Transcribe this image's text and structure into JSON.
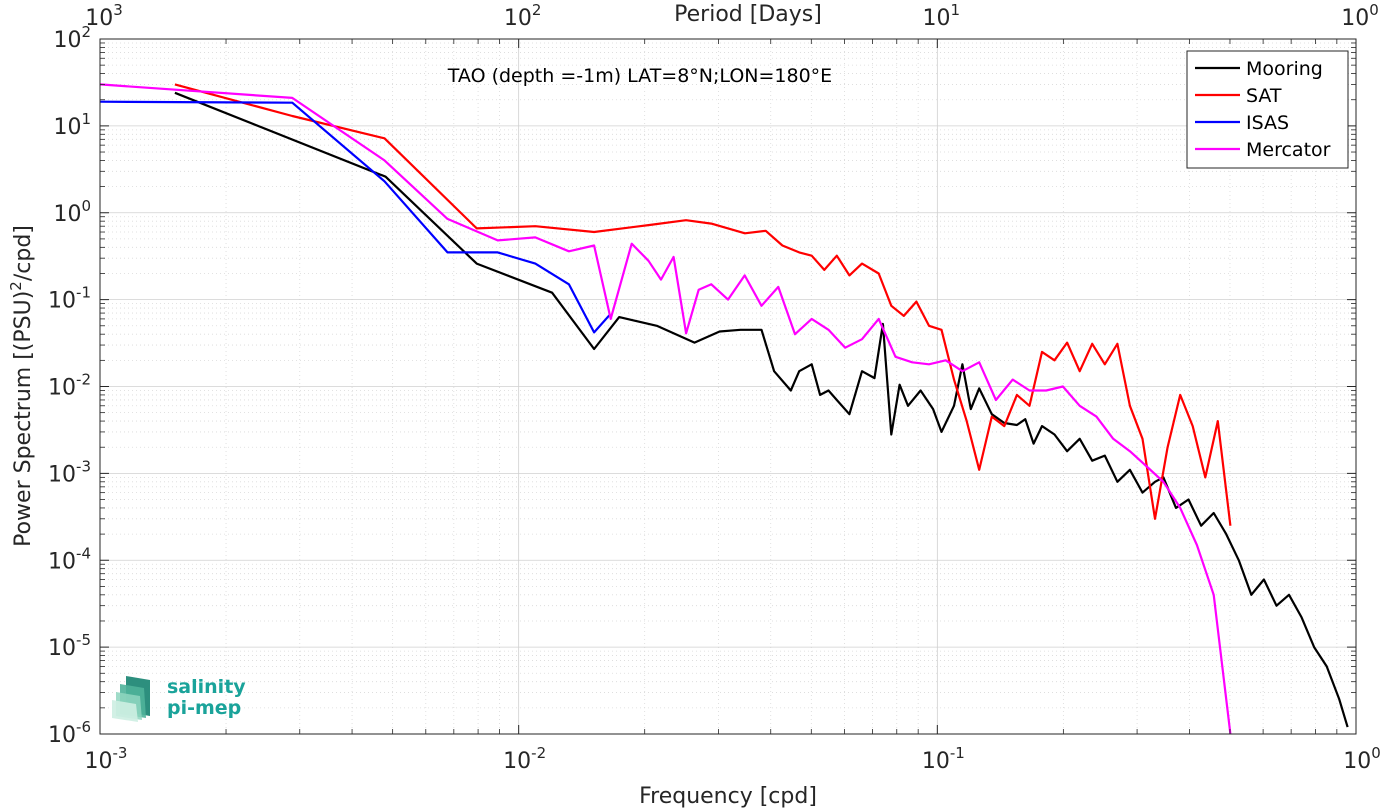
{
  "chart_data": {
    "type": "line",
    "title": "TAO (depth =-1m) LAT=8°N;LON=180°E",
    "xlabel": "Frequency [cpd]",
    "ylabel": "Power Spectrum [(PSU)²/cpd]",
    "top_xlabel": "Period [Days]",
    "xscale": "log",
    "yscale": "log",
    "xlim": [
      0.001,
      1
    ],
    "ylim": [
      1e-06,
      100
    ],
    "grid": true,
    "legend_position": "top-right",
    "x_ticks": [
      {
        "value": 0.001,
        "base": "10",
        "exp": "-3"
      },
      {
        "value": 0.01,
        "base": "10",
        "exp": "-2"
      },
      {
        "value": 0.1,
        "base": "10",
        "exp": "-1"
      },
      {
        "value": 1,
        "base": "10",
        "exp": "0"
      }
    ],
    "top_x_ticks": [
      {
        "value": 0.001,
        "base": "10",
        "exp": "3"
      },
      {
        "value": 0.01,
        "base": "10",
        "exp": "2"
      },
      {
        "value": 0.1,
        "base": "10",
        "exp": "1"
      },
      {
        "value": 1,
        "base": "10",
        "exp": "0"
      }
    ],
    "y_ticks": [
      {
        "value": 1e-06,
        "base": "10",
        "exp": "-6"
      },
      {
        "value": 1e-05,
        "base": "10",
        "exp": "-5"
      },
      {
        "value": 0.0001,
        "base": "10",
        "exp": "-4"
      },
      {
        "value": 0.001,
        "base": "10",
        "exp": "-3"
      },
      {
        "value": 0.01,
        "base": "10",
        "exp": "-2"
      },
      {
        "value": 0.1,
        "base": "10",
        "exp": "-1"
      },
      {
        "value": 1,
        "base": "10",
        "exp": "0"
      },
      {
        "value": 10,
        "base": "10",
        "exp": "1"
      },
      {
        "value": 100,
        "base": "10",
        "exp": "2"
      }
    ],
    "series": [
      {
        "name": "Mooring",
        "color": "#000000",
        "x": [
          0.00151,
          0.00481,
          0.00794,
          0.01202,
          0.01514,
          0.01738,
          0.02138,
          0.0263,
          0.0302,
          0.03388,
          0.03802,
          0.04074,
          0.04467,
          0.04677,
          0.05012,
          0.05248,
          0.05495,
          0.05754,
          0.06166,
          0.06607,
          0.07079,
          0.07413,
          0.07762,
          0.08128,
          0.08511,
          0.0912,
          0.09772,
          0.1023,
          0.1096,
          0.1148,
          0.1202,
          0.1259,
          0.1349,
          0.1445,
          0.1549,
          0.1622,
          0.1698,
          0.1778,
          0.1905,
          0.2042,
          0.2188,
          0.2344,
          0.2512,
          0.2692,
          0.2884,
          0.309,
          0.3311,
          0.3467,
          0.3715,
          0.3981,
          0.4266,
          0.4571,
          0.4898,
          0.5248,
          0.5623,
          0.6026,
          0.6457,
          0.6918,
          0.7413,
          0.7943,
          0.8511,
          0.912,
          0.955
        ],
        "y": [
          24,
          2.6,
          0.26,
          0.12,
          0.027,
          0.063,
          0.05,
          0.032,
          0.043,
          0.045,
          0.045,
          0.015,
          0.009,
          0.015,
          0.018,
          0.008,
          0.009,
          0.007,
          0.0048,
          0.015,
          0.0125,
          0.0525,
          0.0028,
          0.0105,
          0.006,
          0.009,
          0.0055,
          0.003,
          0.006,
          0.018,
          0.0055,
          0.0095,
          0.0048,
          0.0038,
          0.0036,
          0.0042,
          0.0022,
          0.0035,
          0.0028,
          0.0018,
          0.0025,
          0.0014,
          0.0016,
          0.0008,
          0.0011,
          0.0006,
          0.0008,
          0.0009,
          0.0004,
          0.0005,
          0.00025,
          0.00035,
          0.0002,
          0.0001,
          4e-05,
          6e-05,
          3e-05,
          4e-05,
          2.2e-05,
          1e-05,
          6e-06,
          2.5e-06,
          1.2e-06
        ]
      },
      {
        "name": "SAT",
        "color": "#ff0000",
        "x": [
          0.00151,
          0.00288,
          0.00478,
          0.00794,
          0.01096,
          0.01514,
          0.02042,
          0.0251,
          0.02884,
          0.0347,
          0.0389,
          0.04265,
          0.04678,
          0.05012,
          0.05371,
          0.05754,
          0.06166,
          0.06607,
          0.07244,
          0.07762,
          0.08318,
          0.08912,
          0.0955,
          0.1023,
          0.1096,
          0.1175,
          0.1259,
          0.1349,
          0.1445,
          0.1549,
          0.166,
          0.1778,
          0.1905,
          0.2042,
          0.2188,
          0.2344,
          0.2512,
          0.2692,
          0.2884,
          0.309,
          0.3311,
          0.3548,
          0.3802,
          0.4074,
          0.4365,
          0.4677,
          0.5012
        ],
        "y": [
          30,
          13,
          7.2,
          0.66,
          0.7,
          0.6,
          0.72,
          0.82,
          0.75,
          0.58,
          0.62,
          0.42,
          0.35,
          0.32,
          0.22,
          0.32,
          0.19,
          0.26,
          0.2,
          0.085,
          0.065,
          0.095,
          0.05,
          0.045,
          0.012,
          0.004,
          0.0011,
          0.0045,
          0.0035,
          0.008,
          0.006,
          0.025,
          0.02,
          0.032,
          0.015,
          0.031,
          0.018,
          0.031,
          0.006,
          0.0025,
          0.0003,
          0.002,
          0.008,
          0.0035,
          0.0009,
          0.004,
          0.00025
        ]
      },
      {
        "name": "ISAS",
        "color": "#0000ff",
        "x": [
          0.001,
          0.00288,
          0.00478,
          0.00676,
          0.00891,
          0.01096,
          0.01318,
          0.01514,
          0.01655
        ],
        "y": [
          19,
          18.5,
          2.3,
          0.35,
          0.35,
          0.26,
          0.15,
          0.042,
          0.068
        ]
      },
      {
        "name": "Mercator",
        "color": "#ff00ff",
        "x": [
          0.001,
          0.00288,
          0.00478,
          0.00676,
          0.00891,
          0.01096,
          0.01318,
          0.01514,
          0.01659,
          0.01862,
          0.02042,
          0.02188,
          0.02344,
          0.02512,
          0.02692,
          0.02884,
          0.03162,
          0.03467,
          0.03802,
          0.04169,
          0.04571,
          0.05012,
          0.05495,
          0.06026,
          0.06607,
          0.07244,
          0.07943,
          0.0871,
          0.0955,
          0.1047,
          0.1148,
          0.1259,
          0.138,
          0.1514,
          0.166,
          0.182,
          0.1995,
          0.2188,
          0.2399,
          0.263,
          0.2884,
          0.3162,
          0.3467,
          0.3802,
          0.4169,
          0.4571,
          0.5012
        ],
        "y": [
          30,
          21,
          4,
          0.85,
          0.48,
          0.52,
          0.36,
          0.42,
          0.06,
          0.44,
          0.28,
          0.17,
          0.31,
          0.041,
          0.13,
          0.15,
          0.1,
          0.19,
          0.085,
          0.14,
          0.04,
          0.06,
          0.045,
          0.028,
          0.035,
          0.06,
          0.022,
          0.019,
          0.018,
          0.02,
          0.015,
          0.019,
          0.007,
          0.012,
          0.009,
          0.009,
          0.01,
          0.006,
          0.0045,
          0.0025,
          0.0018,
          0.0012,
          0.0008,
          0.0004,
          0.00015,
          4e-05,
          1e-06
        ]
      }
    ]
  },
  "logo": {
    "line1": "salinity",
    "line2": "pi-mep",
    "color": "#1aa39a"
  }
}
